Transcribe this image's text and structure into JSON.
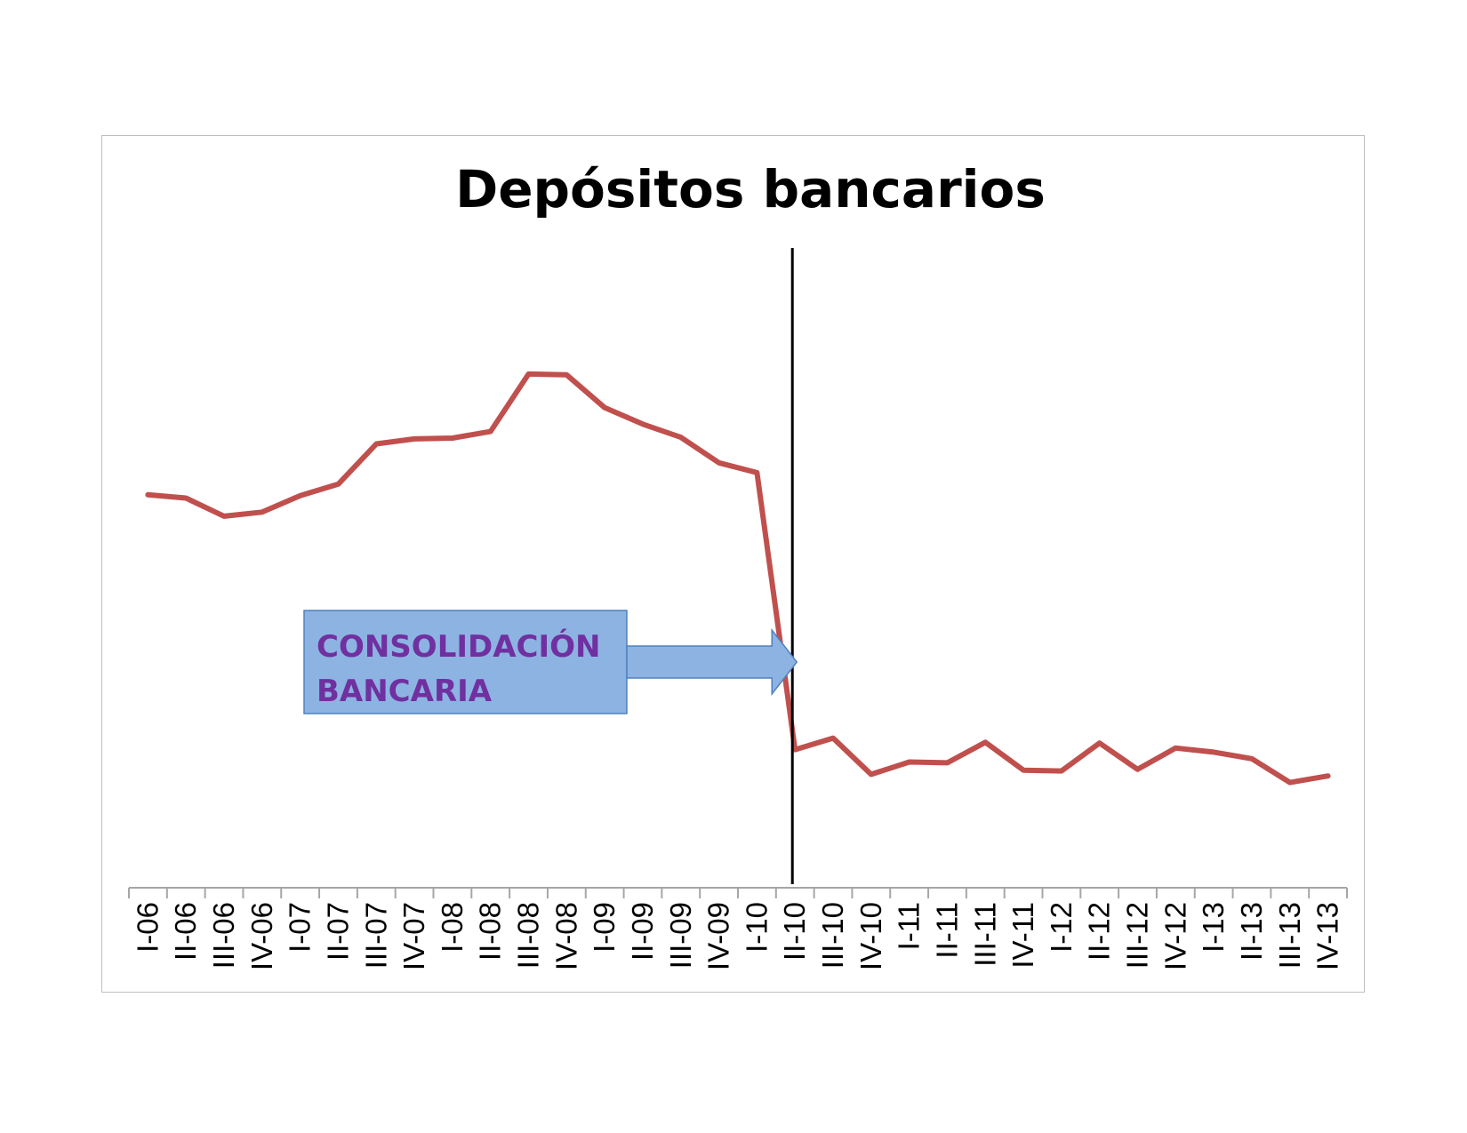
{
  "chart_data": {
    "type": "line",
    "title": "Depósitos bancarios",
    "xlabel": "",
    "ylabel": "",
    "categories": [
      "I-06",
      "II-06",
      "III-06",
      "IV-06",
      "I-07",
      "II-07",
      "III-07",
      "IV-07",
      "I-08",
      "II-08",
      "III-08",
      "IV-08",
      "I-09",
      "II-09",
      "III-09",
      "IV-09",
      "I-10",
      "II-10",
      "III-10",
      "IV-10",
      "I-11",
      "II-11",
      "III-11",
      "IV-11",
      "I-12",
      "II-12",
      "III-12",
      "IV-12",
      "I-13",
      "II-13",
      "III-13",
      "IV-13"
    ],
    "series": [
      {
        "values": [
          478,
          474,
          452,
          457,
          477,
          491,
          540,
          546,
          547,
          555,
          625,
          624,
          584,
          564,
          548,
          517,
          505,
          168,
          182,
          138,
          153,
          152,
          177,
          143,
          142,
          176,
          144,
          170,
          165,
          157,
          128,
          136
        ]
      }
    ],
    "ylim": [
      0,
      800
    ],
    "grid": false,
    "legend": "none",
    "line_color": "#c0504d",
    "marker": {
      "category": "II-10",
      "color": "#000000"
    },
    "annotation": {
      "text_line1": "CONSOLIDACIÓN",
      "text_line2": "BANCARIA",
      "category": "II-10",
      "fill": "#8db3e2",
      "border": "#4f81bd",
      "text_color": "#7030a0",
      "icon": "right-arrow-icon"
    }
  }
}
